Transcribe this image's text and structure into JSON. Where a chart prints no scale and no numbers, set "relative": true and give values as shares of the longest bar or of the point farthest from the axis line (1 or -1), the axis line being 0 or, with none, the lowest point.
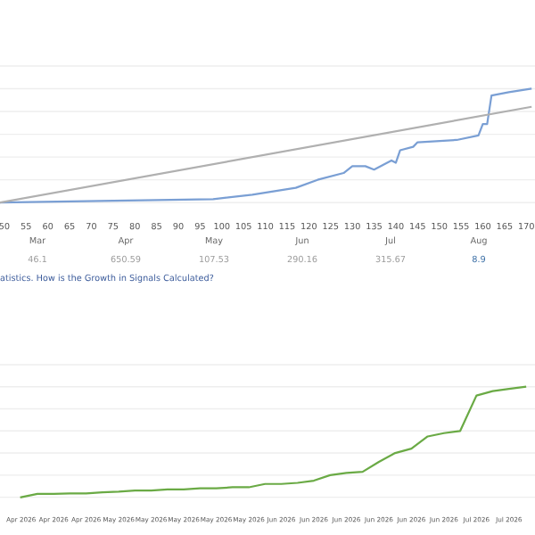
{
  "chart_data": [
    {
      "type": "line",
      "relative": true,
      "grid": "y",
      "tick_labels": "x",
      "xlim": [
        49,
        172
      ],
      "xticks": [
        50,
        55,
        60,
        65,
        70,
        75,
        80,
        85,
        90,
        95,
        100,
        105,
        110,
        115,
        120,
        125,
        130,
        135,
        140,
        145,
        150,
        155,
        160,
        165,
        170
      ],
      "series": [
        {
          "color": "#7a9fd4",
          "x": [
            49,
            98,
            107,
            117,
            122,
            128,
            130,
            133,
            135,
            139,
            140,
            141,
            144,
            145,
            154,
            159,
            160,
            161,
            162,
            166,
            171
          ],
          "values": [
            0,
            0.03,
            0.07,
            0.13,
            0.2,
            0.26,
            0.32,
            0.32,
            0.29,
            0.37,
            0.35,
            0.46,
            0.49,
            0.53,
            0.55,
            0.59,
            0.69,
            0.69,
            0.94,
            0.97,
            1.0
          ]
        },
        {
          "color": "#b0b0b0",
          "x": [
            49,
            171
          ],
          "values": [
            0,
            0.84
          ]
        }
      ],
      "annotations": [
        "Mar",
        "Apr",
        "May",
        "Jun",
        "Jul",
        "Aug",
        "46.1",
        "650.59",
        "107.53",
        "290.16",
        "315.67",
        "8.9",
        "atistics. How is the Growth in Signals Calculated?"
      ]
    },
    {
      "type": "line",
      "relative": true,
      "grid": "y",
      "tick_labels": "x",
      "categories": [
        "Apr 2026",
        null,
        "Apr 2026",
        null,
        "Apr 2026",
        null,
        "May 2026",
        null,
        "May 2026",
        null,
        "May 2026",
        null,
        "May 2026",
        null,
        "May 2026",
        null,
        "Jun 2026",
        null,
        "Jun 2026",
        null,
        "Jun 2026",
        null,
        "Jun 2026",
        null,
        "Jun 2026",
        null,
        "Jun 2026",
        null,
        "Jul 2026",
        null,
        "Jul 2026",
        null
      ],
      "series": [
        {
          "color": "#6aaa45",
          "values": [
            0,
            0.03,
            0.03,
            0.035,
            0.035,
            0.045,
            0.05,
            0.06,
            0.06,
            0.07,
            0.07,
            0.08,
            0.08,
            0.09,
            0.09,
            0.12,
            0.12,
            0.13,
            0.15,
            0.2,
            0.22,
            0.23,
            0.32,
            0.4,
            0.44,
            0.55,
            0.58,
            0.6,
            0.92,
            0.96,
            0.98,
            1.0
          ]
        }
      ]
    }
  ]
}
